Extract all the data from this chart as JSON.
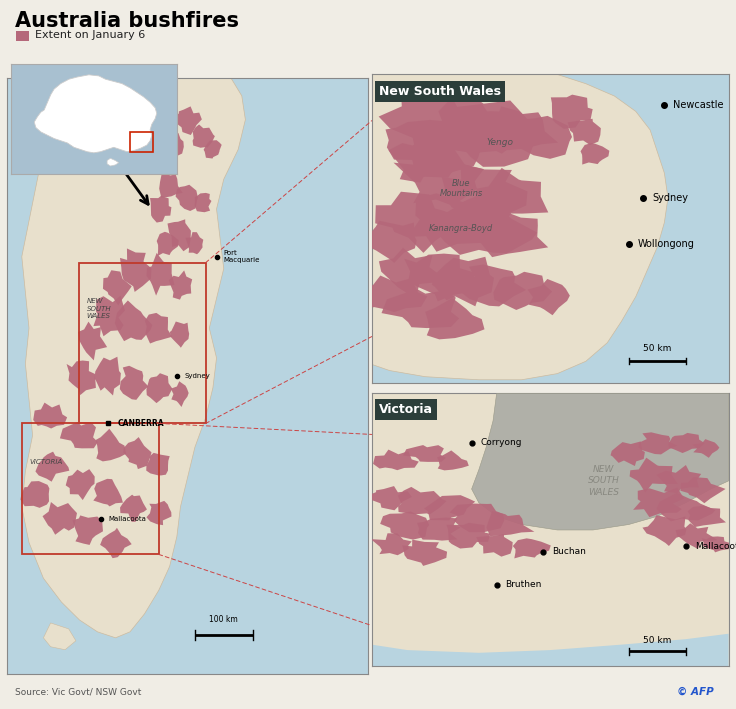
{
  "title": "Australia bushfires",
  "subtitle": "Extent on January 6",
  "source": "Source: Vic Govt/ NSW Govt",
  "copyright": "© AFP",
  "bg_color": "#f0ede5",
  "land_color": "#e8e0cc",
  "water_color": "#b8d4e0",
  "fire_color": "#b5687a",
  "fire_alpha": 0.92,
  "nsw_box_color": "#c0392b",
  "vic_box_color": "#c0392b",
  "panel_header_bg": "#2c3e3a",
  "panel_header_color": "#ffffff",
  "nsw_panel_label": "New South Wales",
  "vic_panel_label": "Victoria",
  "inset_land_color": "#ffffff",
  "inset_water_color": "#a8c0d0",
  "nsw_grey_color": "#b0b0a8",
  "scale_main": "100 km",
  "scale_nsw": "50 km",
  "scale_vic": "50 km"
}
